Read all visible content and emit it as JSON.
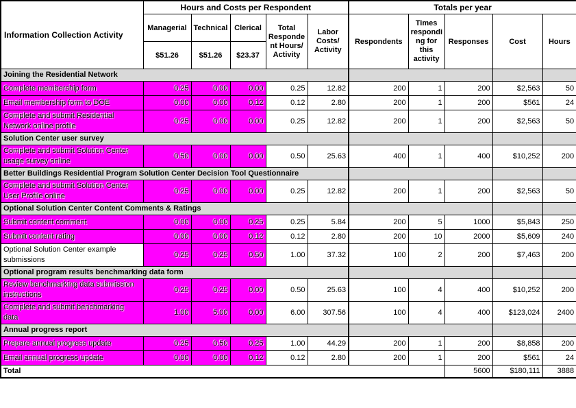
{
  "table": {
    "colors": {
      "highlight": "#FF00FF",
      "section_bg": "#D9D9D9",
      "border": "#000000",
      "background": "#FFFFFF"
    },
    "header": {
      "activity_col": "Information Collection Activity",
      "group_left": "Hours and Costs per Respondent",
      "group_right": "Totals per year",
      "managerial_label": "Managerial",
      "managerial_rate": "$51.26",
      "technical_label": "Technical",
      "technical_rate": "$51.26",
      "clerical_label": "Clerical",
      "clerical_rate": "$23.37",
      "total_hours_label": "Total\nResponde\nnt Hours/\nActivity",
      "labor_costs_label": "Labor\nCosts/\nActivity",
      "respondents_label": "Respondents",
      "times_label": "Times\nrespondi\nng for\nthis\nactivity",
      "responses_label": "Responses",
      "cost_label": "Cost",
      "hours_label": "Hours"
    },
    "rows": [
      {
        "type": "section",
        "label": "Joining the Residential Network"
      },
      {
        "type": "data",
        "highlight_activity": true,
        "activity": "Complete membership form",
        "managerial": "0.25",
        "technical": "0.00",
        "clerical": "0.00",
        "total_hours": "0.25",
        "labor_cost": "12.82",
        "respondents": "200",
        "times": "1",
        "responses": "200",
        "cost": "$2,563",
        "hours": "50"
      },
      {
        "type": "data",
        "highlight_activity": true,
        "activity": "Email membership form to DOE",
        "managerial": "0.00",
        "technical": "0.00",
        "clerical": "0.12",
        "total_hours": "0.12",
        "labor_cost": "2.80",
        "respondents": "200",
        "times": "1",
        "responses": "200",
        "cost": "$561",
        "hours": "24"
      },
      {
        "type": "data",
        "highlight_activity": true,
        "activity": "Complete and submit Residential Network online profile",
        "managerial": "0.25",
        "technical": "0.00",
        "clerical": "0.00",
        "total_hours": "0.25",
        "labor_cost": "12.82",
        "respondents": "200",
        "times": "1",
        "responses": "200",
        "cost": "$2,563",
        "hours": "50"
      },
      {
        "type": "section",
        "label": "Solution Center user survey"
      },
      {
        "type": "data",
        "highlight_activity": true,
        "activity": "Complete and submit Solution Center usage survey online",
        "managerial": "0.50",
        "technical": "0.00",
        "clerical": "0.00",
        "total_hours": "0.50",
        "labor_cost": "25.63",
        "respondents": "400",
        "times": "1",
        "responses": "400",
        "cost": "$10,252",
        "hours": "200"
      },
      {
        "type": "section",
        "label": "Better Buildings Residential Program Solution Center Decision Tool Questionnaire"
      },
      {
        "type": "data",
        "highlight_activity": true,
        "activity": "Complete and submit Solution Center User Profile online",
        "managerial": "0.25",
        "technical": "0.00",
        "clerical": "0.00",
        "total_hours": "0.25",
        "labor_cost": "12.82",
        "respondents": "200",
        "times": "1",
        "responses": "200",
        "cost": "$2,563",
        "hours": "50"
      },
      {
        "type": "section",
        "label": "Optional Solution Center Content Comments & Ratings"
      },
      {
        "type": "data",
        "highlight_activity": true,
        "activity": "Submit content comment",
        "managerial": "0.00",
        "technical": "0.00",
        "clerical": "0.25",
        "total_hours": "0.25",
        "labor_cost": "5.84",
        "respondents": "200",
        "times": "5",
        "responses": "1000",
        "cost": "$5,843",
        "hours": "250"
      },
      {
        "type": "data",
        "highlight_activity": true,
        "activity": "Submit content rating",
        "managerial": "0.00",
        "technical": "0.00",
        "clerical": "0.12",
        "total_hours": "0.12",
        "labor_cost": "2.80",
        "respondents": "200",
        "times": "10",
        "responses": "2000",
        "cost": "$5,609",
        "hours": "240"
      },
      {
        "type": "data",
        "highlight_activity": false,
        "activity": "Optional Solution Center example submissions",
        "managerial": "0.25",
        "technical": "0.25",
        "clerical": "0.50",
        "total_hours": "1.00",
        "labor_cost": "37.32",
        "respondents": "100",
        "times": "2",
        "responses": "200",
        "cost": "$7,463",
        "hours": "200"
      },
      {
        "type": "section",
        "label": "Optional program results benchmarking data form"
      },
      {
        "type": "data",
        "highlight_activity": true,
        "activity": "Review benchmarking data submission instructions",
        "managerial": "0.25",
        "technical": "0.25",
        "clerical": "0.00",
        "total_hours": "0.50",
        "labor_cost": "25.63",
        "respondents": "100",
        "times": "4",
        "responses": "400",
        "cost": "$10,252",
        "hours": "200"
      },
      {
        "type": "data",
        "highlight_activity": true,
        "activity": "Complete and submit benchmarking data",
        "managerial": "1.00",
        "technical": "5.00",
        "clerical": "0.00",
        "total_hours": "6.00",
        "labor_cost": "307.56",
        "respondents": "100",
        "times": "4",
        "responses": "400",
        "cost": "$123,024",
        "hours": "2400"
      },
      {
        "type": "section",
        "label": "Annual progress report"
      },
      {
        "type": "data",
        "highlight_activity": true,
        "activity": "Prepare annual progress update",
        "managerial": "0.25",
        "technical": "0.50",
        "clerical": "0.25",
        "total_hours": "1.00",
        "labor_cost": "44.29",
        "respondents": "200",
        "times": "1",
        "responses": "200",
        "cost": "$8,858",
        "hours": "200"
      },
      {
        "type": "data",
        "highlight_activity": true,
        "activity": "Email annual progress update",
        "managerial": "0.00",
        "technical": "0.00",
        "clerical": "0.12",
        "total_hours": "0.12",
        "labor_cost": "2.80",
        "respondents": "200",
        "times": "1",
        "responses": "200",
        "cost": "$561",
        "hours": "24"
      },
      {
        "type": "total",
        "label": "Total",
        "responses": "5600",
        "cost": "$180,111",
        "hours": "3888"
      }
    ]
  }
}
